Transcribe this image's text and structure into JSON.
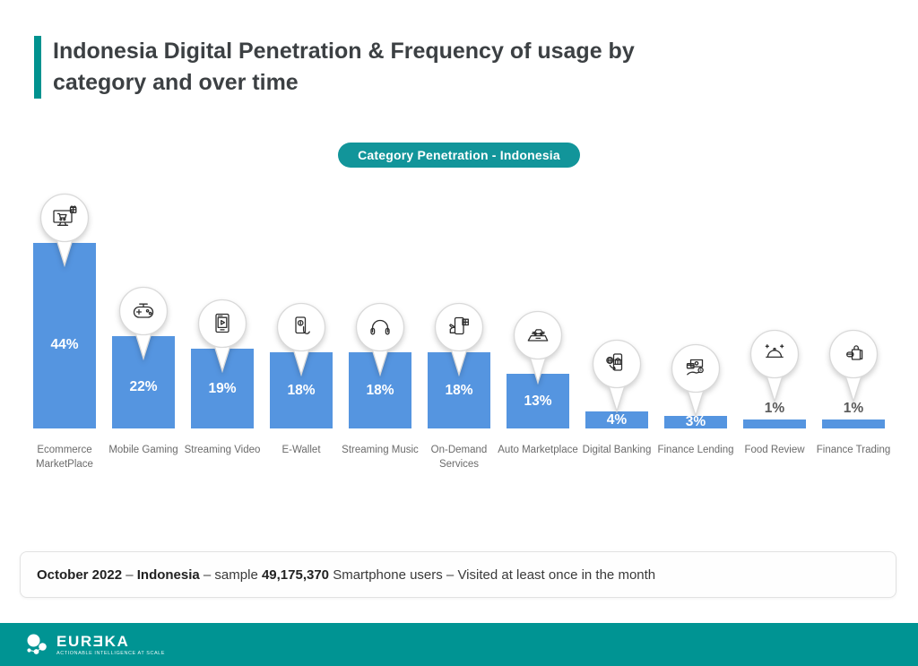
{
  "header": {
    "title": "Indonesia Digital Penetration & Frequency of usage by category and over time"
  },
  "chart_data": {
    "type": "bar",
    "title": "Category Penetration - Indonesia",
    "unit": "%",
    "bar_color": "#5595E0",
    "ylim": [
      0,
      44
    ],
    "grid": false,
    "legend": "none",
    "categories": [
      "Ecommerce MarketPlace",
      "Mobile Gaming",
      "Streaming Video",
      "E-Wallet",
      "Streaming Music",
      "On-Demand Services",
      "Auto Marketplace",
      "Digital Banking",
      "Finance Lending",
      "Food Review",
      "Finance Trading"
    ],
    "values": [
      44,
      22,
      19,
      18,
      18,
      18,
      13,
      4,
      3,
      1,
      1
    ],
    "value_labels": [
      "44%",
      "22%",
      "19%",
      "18%",
      "18%",
      "18%",
      "13%",
      "4%",
      "3%",
      "1%",
      "1%"
    ],
    "icons": [
      "ecommerce-marketplace-icon",
      "mobile-gaming-icon",
      "streaming-video-icon",
      "e-wallet-icon",
      "streaming-music-icon",
      "on-demand-services-icon",
      "auto-marketplace-icon",
      "digital-banking-icon",
      "finance-lending-icon",
      "food-review-icon",
      "finance-trading-icon"
    ]
  },
  "footnote": {
    "parts": [
      {
        "text": "October 2022",
        "bold": true
      },
      {
        "text": " – ",
        "bold": false
      },
      {
        "text": "Indonesia",
        "bold": true
      },
      {
        "text": " – sample ",
        "bold": false
      },
      {
        "text": "49,175,370",
        "bold": true
      },
      {
        "text": " Smartphone users – Visited at least once in the month",
        "bold": false
      }
    ]
  },
  "footer": {
    "brand": "EUREKA",
    "brand_stylized": "EURƎKA",
    "tagline": "ACTIONABLE INTELLIGENCE AT SCALE",
    "background": "#009493"
  },
  "colors": {
    "accent": "#00928F",
    "pill_bg": "#12959A",
    "bar": "#5595E0",
    "title_text": "#3C4043",
    "category_label_text": "#6B6B6B",
    "value_inside_text": "#FFFFFF",
    "value_outside_text": "#595959"
  }
}
